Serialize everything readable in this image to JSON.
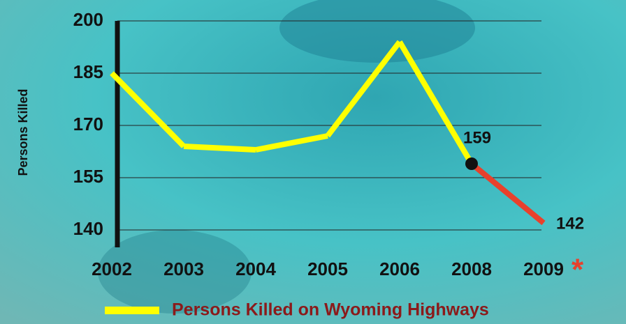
{
  "chart_data": {
    "type": "line",
    "y_label": "Persons Killed",
    "categories": [
      "2002",
      "2003",
      "2004",
      "2005",
      "2006",
      "2008",
      "2009"
    ],
    "series": [
      {
        "name": "Persons Killed on Wyoming Highways",
        "color": "#ffff00",
        "values": [
          185,
          164,
          163,
          167,
          194,
          159,
          142
        ],
        "segment_colors": [
          "#ffff00",
          "#ffff00",
          "#ffff00",
          "#ffff00",
          "#ffff00",
          "#e8412c"
        ],
        "value_labels": [
          null,
          null,
          null,
          null,
          null,
          "159",
          "142"
        ]
      }
    ],
    "annotation": "*",
    "annotation_color": "#e8412c",
    "marker_color": "#111111",
    "ylim": [
      135,
      200
    ],
    "yticks": [
      140,
      155,
      170,
      185,
      200
    ],
    "grid": true,
    "legend": "bottom",
    "legend_text_color": "#8b1a1a"
  }
}
